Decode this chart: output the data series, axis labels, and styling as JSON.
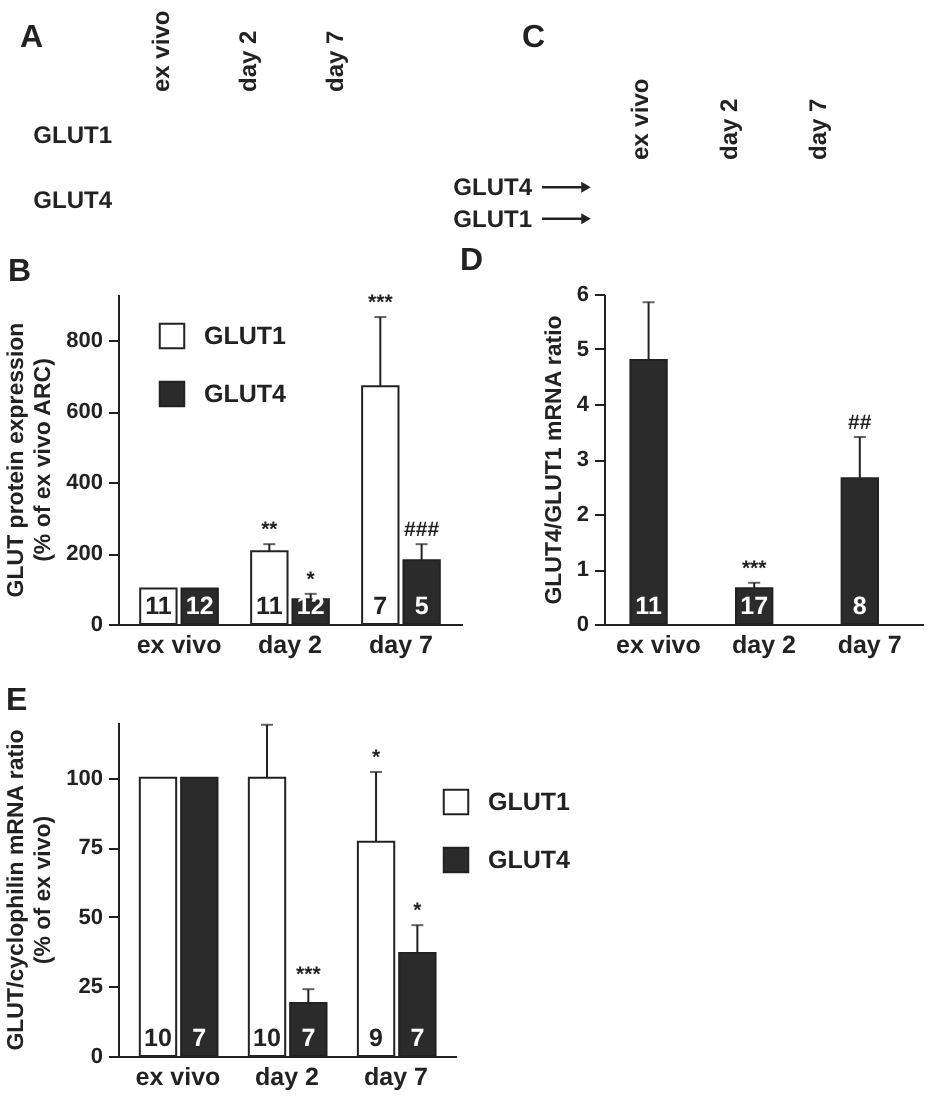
{
  "chart_data": [
    {
      "type": "other",
      "title": "A",
      "categories": [
        "ex vivo",
        "day 2",
        "day 7"
      ],
      "y_categories": [
        "GLUT1",
        "GLUT4"
      ]
    },
    {
      "type": "other",
      "title": "C",
      "categories": [
        "ex vivo",
        "day 2",
        "day 7"
      ],
      "annotations": [
        "GLUT4",
        "GLUT1"
      ]
    },
    {
      "type": "bar",
      "title": "B",
      "ylabel": "GLUT protein expression\n(% of ex vivo ARC)",
      "categories": [
        "ex vivo",
        "day 2",
        "day 7"
      ],
      "ylim": [
        0,
        930
      ],
      "yticks": [
        0,
        200,
        400,
        600,
        800
      ],
      "legend": "top left",
      "series": [
        {
          "name": "GLUT1",
          "color": "#ffffff",
          "values": [
            100,
            205,
            670
          ],
          "errors": [
            null,
            [
              205,
              225
            ],
            [
              670,
              865
            ]
          ],
          "value_labels": [
            null,
            "**",
            null
          ]
        },
        {
          "name": "GLUT4",
          "color": "#2b2b2b",
          "values": [
            100,
            70,
            180
          ],
          "errors": [
            null,
            [
              70,
              85
            ],
            [
              180,
              225
            ]
          ],
          "value_labels": [
            null,
            "*",
            "###"
          ]
        }
      ],
      "annotations": [
        "11",
        "12",
        "11",
        "12",
        "7",
        "5",
        "***"
      ]
    },
    {
      "type": "bar",
      "title": "D",
      "ylabel": "GLUT4/GLUT1 mRNA ratio",
      "categories": [
        "ex vivo",
        "day 2",
        "day 7"
      ],
      "ylim": [
        0,
        6
      ],
      "yticks": [
        0,
        1,
        2,
        3,
        4,
        5,
        6
      ],
      "series": [
        {
          "color": "#2b2b2b",
          "values": [
            4.8,
            0.65,
            2.65
          ],
          "errors": [
            [
              4.8,
              5.85
            ],
            [
              0.65,
              0.75
            ],
            [
              2.65,
              3.4
            ]
          ],
          "value_labels": [
            null,
            "***",
            "##"
          ]
        }
      ],
      "annotations": [
        "11",
        "17",
        "8"
      ]
    },
    {
      "type": "bar",
      "title": "E",
      "ylabel": "GLUT/cyclophilin mRNA ratio\n(% of ex vivo)",
      "categories": [
        "ex vivo",
        "day 2",
        "day 7"
      ],
      "ylim": [
        0,
        120
      ],
      "yticks": [
        0,
        25,
        50,
        75,
        100
      ],
      "legend": "top right",
      "series": [
        {
          "name": "GLUT1",
          "color": "#ffffff",
          "values": [
            100,
            100,
            77
          ],
          "errors": [
            null,
            [
              100,
              119
            ],
            [
              77,
              102
            ]
          ]
        },
        {
          "name": "GLUT4",
          "color": "#2b2b2b",
          "values": [
            100,
            19,
            37
          ],
          "errors": [
            null,
            [
              19,
              24
            ],
            [
              37,
              47
            ]
          ],
          "value_labels": [
            null,
            "***",
            "*"
          ]
        }
      ],
      "annotations": [
        "10",
        "7",
        "10",
        "7",
        "9",
        "7",
        "*"
      ]
    }
  ]
}
